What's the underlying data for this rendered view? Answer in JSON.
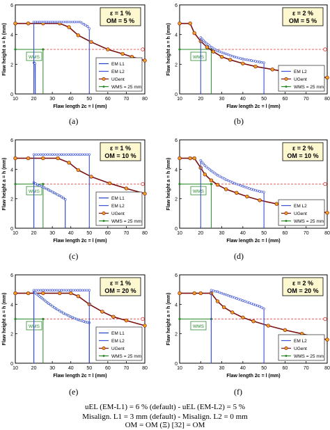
{
  "chart_data": [
    {
      "type": "line",
      "panel_label": "(a)",
      "badge": [
        "ε = 1 %",
        "OM = 5 %"
      ],
      "xlabel": "Flaw length 2c = l (mm)",
      "ylabel": "Flaw height a = h (mm)",
      "xlim": [
        10,
        80
      ],
      "ylim": [
        0,
        6
      ],
      "xticks": [
        10,
        20,
        30,
        40,
        50,
        60,
        70,
        80
      ],
      "yticks": [
        0,
        2,
        4,
        6
      ],
      "legend": [
        "EM L1",
        "EM L2",
        "UGent",
        "WMS = 25 mm"
      ],
      "reference_height": 3,
      "wms_box": {
        "label": "WMS",
        "x": [
          10,
          25
        ],
        "y": [
          0,
          3
        ]
      },
      "em_l1": {
        "x": [
          20,
          20.1,
          20.3,
          20.6,
          20.7,
          20.8,
          20.8
        ],
        "y": [
          0,
          2.1,
          2.08,
          2.05,
          2.02,
          2.0,
          0
        ]
      },
      "em_l2": {
        "x": [
          20,
          20,
          23,
          26,
          30,
          34,
          38,
          42,
          45,
          47,
          49,
          50,
          50
        ],
        "y": [
          0,
          4.85,
          4.85,
          4.85,
          4.85,
          4.85,
          4.85,
          4.85,
          4.85,
          4.7,
          4.55,
          4.4,
          0
        ]
      },
      "ugent": {
        "x": [
          10,
          17,
          25,
          34,
          39,
          44,
          51,
          60,
          68,
          73,
          80
        ],
        "y": [
          4.75,
          4.75,
          4.75,
          4.75,
          4.5,
          3.95,
          3.5,
          3.0,
          2.7,
          2.5,
          2.25
        ]
      }
    },
    {
      "type": "line",
      "panel_label": "(b)",
      "badge": [
        "ε = 2 %",
        "OM = 5 %"
      ],
      "xlabel": "Flaw length 2c = l (mm)",
      "ylabel": "Flaw height a = h (mm)",
      "xlim": [
        10,
        80
      ],
      "ylim": [
        0,
        6
      ],
      "xticks": [
        10,
        20,
        30,
        40,
        50,
        60,
        70,
        80
      ],
      "yticks": [
        0,
        2,
        4,
        6
      ],
      "legend": [
        "EM L2",
        "UGent",
        "WMS = 25 mm"
      ],
      "reference_height": 3,
      "wms_box": {
        "label": "WMS",
        "x": [
          10,
          25
        ],
        "y": [
          0,
          3
        ]
      },
      "em_l2": {
        "x": [
          20,
          20,
          22,
          25,
          28,
          32,
          36,
          40,
          44,
          48,
          50,
          50
        ],
        "y": [
          0,
          3.8,
          3.5,
          3.15,
          2.9,
          2.7,
          2.5,
          2.35,
          2.25,
          2.15,
          2.1,
          0
        ]
      },
      "ugent": {
        "x": [
          10,
          15,
          17,
          20,
          23,
          26,
          30,
          34,
          40,
          46,
          54,
          62,
          70,
          80
        ],
        "y": [
          4.75,
          4.75,
          4.1,
          3.55,
          3.15,
          2.85,
          2.5,
          2.3,
          2.05,
          1.85,
          1.65,
          1.45,
          1.3,
          1.1
        ]
      }
    },
    {
      "type": "line",
      "panel_label": "(c)",
      "badge": [
        "ε = 1 %",
        "OM = 10 %"
      ],
      "xlabel": "Flaw length 2c = l (mm)",
      "ylabel": "Flaw height a = h (mm)",
      "xlim": [
        10,
        80
      ],
      "ylim": [
        0,
        6
      ],
      "xticks": [
        10,
        20,
        30,
        40,
        50,
        60,
        70,
        80
      ],
      "yticks": [
        0,
        2,
        4,
        6
      ],
      "legend": [
        "EM L1",
        "EM L2",
        "UGent",
        "WMS = 25 mm"
      ],
      "reference_height": 3,
      "wms_box": {
        "label": "WMS",
        "x": [
          10,
          25
        ],
        "y": [
          0,
          3
        ]
      },
      "em_l1": {
        "x": [
          20,
          20,
          22,
          25,
          28,
          31,
          34,
          36,
          37,
          37
        ],
        "y": [
          0,
          3.1,
          2.95,
          2.8,
          2.6,
          2.4,
          2.2,
          2.05,
          1.95,
          0
        ]
      },
      "em_l2": {
        "x": [
          20,
          20,
          25,
          30,
          35,
          40,
          45,
          50,
          50
        ],
        "y": [
          0,
          5.0,
          5.0,
          5.0,
          5.0,
          5.0,
          5.0,
          5.0,
          0
        ]
      },
      "ugent": {
        "x": [
          10,
          17,
          25,
          33,
          39,
          44,
          51,
          61,
          70,
          80
        ],
        "y": [
          4.75,
          4.75,
          4.75,
          4.75,
          4.45,
          3.95,
          3.5,
          3.05,
          2.7,
          2.35
        ]
      }
    },
    {
      "type": "line",
      "panel_label": "(d)",
      "badge": [
        "ε = 2 %",
        "OM = 10 %"
      ],
      "xlabel": "Flaw length 2c = l (mm)",
      "ylabel": "Flaw height a = h (mm)",
      "xlim": [
        10,
        80
      ],
      "ylim": [
        0,
        6
      ],
      "xticks": [
        10,
        20,
        30,
        40,
        50,
        60,
        70,
        80
      ],
      "yticks": [
        0,
        2,
        4,
        6
      ],
      "legend": [
        "EM L2",
        "UGent",
        "WMS = 25 mm"
      ],
      "reference_height": 3,
      "wms_box": {
        "label": "WMS",
        "x": [
          10,
          25
        ],
        "y": [
          0,
          3
        ]
      },
      "em_l2": {
        "x": [
          20,
          20,
          22,
          25,
          28,
          32,
          36,
          40,
          44,
          48,
          50,
          50
        ],
        "y": [
          0,
          4.6,
          4.25,
          3.9,
          3.6,
          3.3,
          3.05,
          2.85,
          2.65,
          2.5,
          2.45,
          0
        ]
      },
      "ugent": {
        "x": [
          10,
          15,
          17,
          20,
          22,
          25,
          28,
          32,
          37,
          42,
          48,
          56,
          64,
          72,
          80
        ],
        "y": [
          4.75,
          4.75,
          4.75,
          4.1,
          3.65,
          3.25,
          2.95,
          2.65,
          2.4,
          2.15,
          1.9,
          1.65,
          1.45,
          1.25,
          1.05
        ]
      }
    },
    {
      "type": "line",
      "panel_label": "(e)",
      "badge": [
        "ε = 1 %",
        "OM = 20 %"
      ],
      "xlabel": "Flaw length 2c = l (mm)",
      "ylabel": "Flaw height a = h (mm)",
      "xlim": [
        10,
        80
      ],
      "ylim": [
        0,
        6
      ],
      "xticks": [
        10,
        20,
        30,
        40,
        50,
        60,
        70,
        80
      ],
      "yticks": [
        0,
        2,
        4,
        6
      ],
      "legend": [
        "EM L1",
        "EM L2",
        "UGent",
        "WMS = 25 mm"
      ],
      "reference_height": 3,
      "wms_box": {
        "label": "WMS",
        "x": [
          10,
          25
        ],
        "y": [
          0,
          3
        ]
      },
      "em_l1": {
        "x": [
          20,
          20,
          24,
          28,
          32,
          36,
          40,
          44,
          48,
          50,
          50
        ],
        "y": [
          0,
          4.85,
          4.45,
          4.05,
          3.7,
          3.4,
          3.15,
          2.95,
          2.8,
          2.75,
          0
        ]
      },
      "em_l2": {
        "x": [
          20,
          20,
          25,
          30,
          35,
          40,
          45,
          50,
          50
        ],
        "y": [
          0,
          4.95,
          4.95,
          4.95,
          4.95,
          4.95,
          4.95,
          4.95,
          0
        ]
      },
      "ugent": {
        "x": [
          10,
          17,
          25,
          34,
          40,
          44,
          50,
          57,
          63,
          70,
          80
        ],
        "y": [
          4.75,
          4.75,
          4.75,
          4.75,
          4.75,
          4.55,
          4.0,
          3.5,
          3.15,
          2.9,
          2.55
        ]
      }
    },
    {
      "type": "line",
      "panel_label": "(f)",
      "badge": [
        "ε = 2 %",
        "OM = 20 %"
      ],
      "xlabel": "Flaw length 2c = l (mm)",
      "ylabel": "Flaw height a = h (mm)",
      "xlim": [
        10,
        80
      ],
      "ylim": [
        0,
        6
      ],
      "xticks": [
        10,
        20,
        30,
        40,
        50,
        60,
        70,
        80
      ],
      "yticks": [
        0,
        2,
        4,
        6
      ],
      "legend": [
        "EM L2",
        "UGent",
        "WMS = 25 mm"
      ],
      "reference_height": 3,
      "wms_box": {
        "label": "WMS",
        "x": [
          10,
          25
        ],
        "y": [
          0,
          3
        ]
      },
      "em_l2": {
        "x": [
          25,
          25,
          28,
          31,
          34,
          37,
          40,
          43,
          46,
          48,
          50,
          50
        ],
        "y": [
          0,
          4.95,
          4.85,
          4.7,
          4.55,
          4.4,
          4.25,
          4.1,
          3.95,
          3.85,
          3.7,
          0
        ]
      },
      "ugent": {
        "x": [
          10,
          17,
          20,
          25,
          28,
          31,
          35,
          40,
          45,
          52,
          60,
          68,
          75,
          80
        ],
        "y": [
          4.75,
          4.75,
          4.75,
          4.75,
          4.2,
          3.8,
          3.45,
          3.1,
          2.85,
          2.55,
          2.25,
          2.0,
          1.75,
          1.6
        ]
      }
    }
  ],
  "footnote": {
    "line1": "uEL (EM-L1) = 6 % (default) - uEL (EM-L2) = 5 %",
    "line2": "Misalign. L1 = 3 mm (default)  -  Misalign. L2 = 0 mm",
    "line3": "OM = OM    (Ξ) [32] = OM"
  },
  "colors": {
    "em_l1": "#1f3fc4",
    "em_l2": "#3a4fd8",
    "ugent_line": "#7a1010",
    "ugent_marker": "#f0a020",
    "wms": "#2a8a2a",
    "reference": "#e03030",
    "badge_fill": "#fdf8d0"
  }
}
